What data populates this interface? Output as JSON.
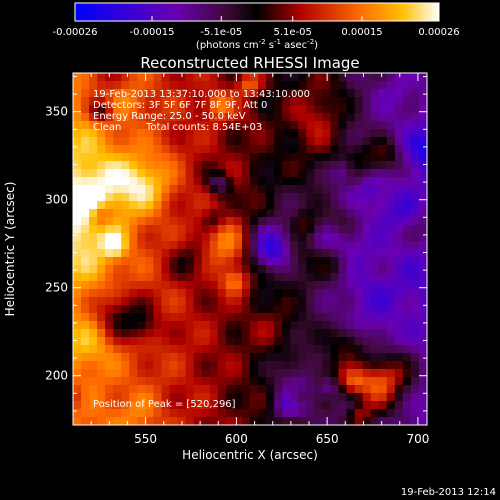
{
  "chart_data": {
    "type": "heatmap",
    "title": "Reconstructed RHESSI Image",
    "xlabel": "Heliocentric X (arcsec)",
    "ylabel": "Heliocentric Y (arcsec)",
    "xlim": [
      510,
      705
    ],
    "ylim": [
      172,
      372
    ],
    "xticks": [
      550,
      600,
      650,
      700
    ],
    "yticks": [
      200,
      250,
      300,
      350
    ],
    "colorbar": {
      "ticks": [
        "-0.00026",
        "-0.00015",
        "-5.1e-05",
        "5.1e-05",
        "0.00015",
        "0.00026"
      ],
      "tick_values": [
        -0.00026,
        -0.00015,
        -5.1e-05,
        5.1e-05,
        0.00015,
        0.00026
      ],
      "range": [
        -0.00026,
        0.00026
      ],
      "label": "(photons cm",
      "label_sup1": "-2",
      "label_mid": " s",
      "label_sup2": "-1",
      "label_end": " asec",
      "label_sup3": "-2",
      "label_close": ")",
      "stops": [
        "#0000ff",
        "#6a00b0",
        "#3c0a32",
        "#000000",
        "#b00000",
        "#ff6a00",
        "#ffc000",
        "#ffffff"
      ]
    },
    "annotations": {
      "line1": "19-Feb-2013 13:37:10.000 to 13:43:10.000",
      "line2": "Detectors: 3F 5F 6F 7F 8F 9F, Att 0",
      "line3": "Energy Range: 25.0 - 50.0 keV",
      "line4_method": "Clean",
      "line4_counts": "Total counts: 8.54E+03",
      "peak": "Position of Peak = [520,296]"
    },
    "peak": [
      520,
      296
    ],
    "timestamp": "19-Feb-2013 12:14"
  }
}
